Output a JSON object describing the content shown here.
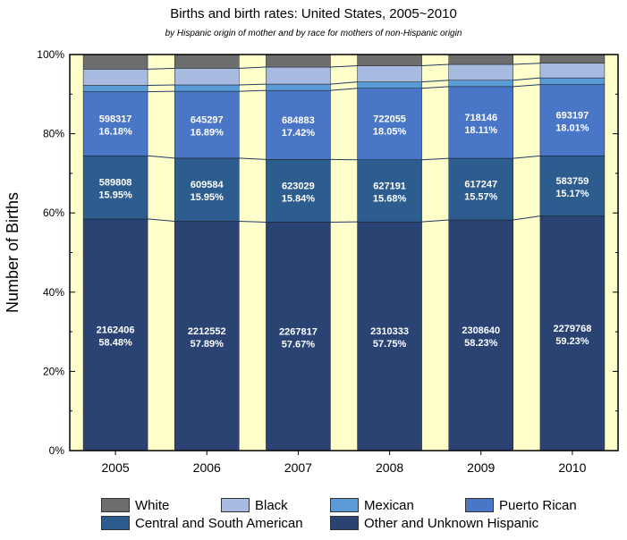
{
  "chart_data": {
    "type": "bar",
    "stacked": true,
    "percent": true,
    "title": "Births and birth rates: United States, 2005~2010",
    "subtitle": "by Hispanic origin of mother and by race for mothers of non-Hispanic origin",
    "xlabel": "",
    "ylabel": "Number of Births",
    "ylim": [
      0,
      100
    ],
    "yticks": [
      "0%",
      "20%",
      "40%",
      "60%",
      "80%",
      "100%"
    ],
    "categories": [
      "2005",
      "2006",
      "2007",
      "2008",
      "2009",
      "2010"
    ],
    "series": [
      {
        "name": "Other and Unknown Hispanic",
        "color": "#2a4373",
        "values": [
          58.48,
          57.89,
          57.67,
          57.75,
          58.23,
          59.23
        ],
        "counts": [
          "2162406",
          "2212552",
          "2267817",
          "2310333",
          "2308640",
          "2279768"
        ],
        "pct_labels": [
          "58.48%",
          "57.89%",
          "57.67%",
          "57.75%",
          "58.23%",
          "59.23%"
        ]
      },
      {
        "name": "Central and South American",
        "color": "#2d5d8e",
        "values": [
          15.95,
          15.95,
          15.84,
          15.68,
          15.57,
          15.17
        ],
        "counts": [
          "589808",
          "609584",
          "623029",
          "627191",
          "617247",
          "583759"
        ],
        "pct_labels": [
          "15.95%",
          "15.95%",
          "15.84%",
          "15.68%",
          "15.57%",
          "15.17%"
        ]
      },
      {
        "name": "Puerto Rican",
        "color": "#4a76c7",
        "values": [
          16.18,
          16.89,
          17.42,
          18.05,
          18.11,
          18.01
        ],
        "counts": [
          "598317",
          "645297",
          "684883",
          "722055",
          "718146",
          "693197"
        ],
        "pct_labels": [
          "16.18%",
          "16.89%",
          "17.42%",
          "18.05%",
          "18.11%",
          "18.01%"
        ]
      },
      {
        "name": "Mexican",
        "color": "#5b9bd5",
        "values": [
          1.6,
          1.6,
          1.6,
          1.6,
          1.6,
          1.7
        ]
      },
      {
        "name": "Black",
        "color": "#a7bbe1",
        "values": [
          4.1,
          4.2,
          4.3,
          4.1,
          4.0,
          3.7
        ]
      },
      {
        "name": "White",
        "color": "#6d6d6d",
        "values": [
          3.69,
          3.47,
          3.17,
          2.82,
          2.49,
          2.19
        ]
      }
    ],
    "legend_order": [
      "White",
      "Black",
      "Mexican",
      "Puerto Rican",
      "Central and South American",
      "Other and Unknown Hispanic"
    ],
    "background_color": "#ffffcc",
    "grid": false
  }
}
